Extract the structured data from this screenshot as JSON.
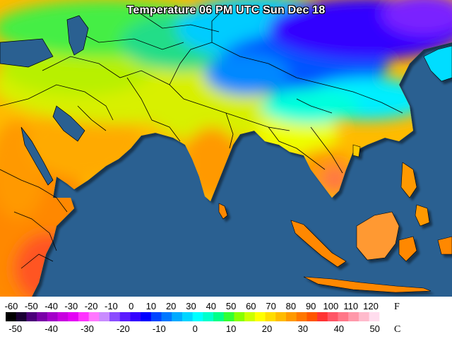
{
  "title": "Temperature 06 PM UTC Sun Dec 18",
  "legend": {
    "fahrenheit_unit": "F",
    "celsius_unit": "C",
    "fahrenheit_ticks": [
      "-60",
      "-50",
      "-40",
      "-30",
      "-20",
      "-10",
      "0",
      "10",
      "20",
      "30",
      "40",
      "50",
      "60",
      "70",
      "80",
      "90",
      "100",
      "110",
      "120"
    ],
    "celsius_ticks": [
      "-50",
      "-40",
      "-30",
      "-20",
      "-10",
      "0",
      "10",
      "20",
      "30",
      "40",
      "50"
    ],
    "color_scale": [
      "#000000",
      "#1a0033",
      "#4b007a",
      "#7a00a8",
      "#a300c9",
      "#c800e0",
      "#e400f5",
      "#ff33ff",
      "#ff77ff",
      "#c98cff",
      "#8a4dff",
      "#5a1aff",
      "#3300ff",
      "#0000ff",
      "#0044ff",
      "#0077ff",
      "#00aaff",
      "#00d5ff",
      "#00ffff",
      "#00ffcc",
      "#00ff88",
      "#33ff33",
      "#88ff00",
      "#ccff00",
      "#ffff00",
      "#ffdd00",
      "#ffbb00",
      "#ff9900",
      "#ff7700",
      "#ff5500",
      "#ff3333",
      "#ff5566",
      "#ff7788",
      "#ff99aa",
      "#ffbbcc",
      "#ffddee",
      "#ffffff"
    ]
  },
  "colors": {
    "ocean": "#2a6091",
    "border_lines": "#000000"
  }
}
